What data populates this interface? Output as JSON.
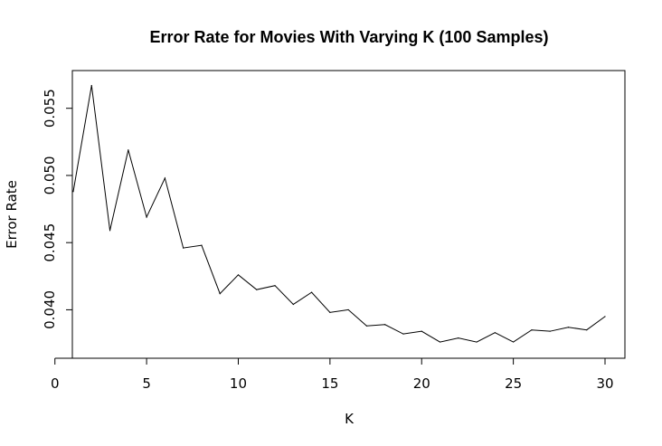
{
  "chart_data": {
    "type": "line",
    "title": "Error Rate for Movies With Varying K (100 Samples)",
    "xlabel": "K",
    "ylabel": "Error Rate",
    "xlim": [
      1,
      30
    ],
    "ylim": [
      0.0372,
      0.057
    ],
    "x_ticks": [
      0,
      5,
      10,
      15,
      20,
      25,
      30
    ],
    "x_tick_labels": [
      "0",
      "5",
      "10",
      "15",
      "20",
      "25",
      "30"
    ],
    "y_ticks": [
      0.04,
      0.045,
      0.05,
      0.055
    ],
    "y_tick_labels": [
      "0.040",
      "0.045",
      "0.050",
      "0.055"
    ],
    "grid": false,
    "legend": "none",
    "line_color": "#000000",
    "series": [
      {
        "x": [
          1,
          2,
          3,
          4,
          5,
          6,
          7,
          8,
          9,
          10,
          11,
          12,
          13,
          14,
          15,
          16,
          17,
          18,
          19,
          20,
          21,
          22,
          23,
          24,
          25,
          26,
          27,
          28,
          29,
          30
        ],
        "values": [
          0.0488,
          0.0567,
          0.0459,
          0.0519,
          0.0469,
          0.0498,
          0.0446,
          0.0448,
          0.0412,
          0.0426,
          0.0415,
          0.0418,
          0.0404,
          0.0413,
          0.0398,
          0.04,
          0.0388,
          0.0389,
          0.0382,
          0.0384,
          0.0376,
          0.0379,
          0.0376,
          0.0383,
          0.0376,
          0.0385,
          0.0384,
          0.0387,
          0.0385,
          0.0395
        ]
      }
    ]
  }
}
